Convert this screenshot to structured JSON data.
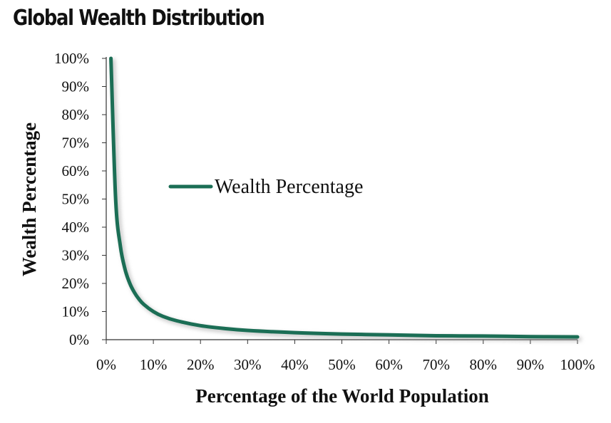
{
  "chart_data": {
    "type": "line",
    "title": "Global Wealth Distribution",
    "xlabel": "Percentage of the World Population",
    "ylabel": "Wealth Percentage",
    "xlim": [
      0,
      100
    ],
    "ylim": [
      0,
      100
    ],
    "x_ticks": [
      "0%",
      "10%",
      "20%",
      "30%",
      "40%",
      "50%",
      "60%",
      "70%",
      "80%",
      "90%",
      "100%"
    ],
    "y_ticks": [
      "0%",
      "10%",
      "20%",
      "30%",
      "40%",
      "50%",
      "60%",
      "70%",
      "80%",
      "90%",
      "100%"
    ],
    "grid": false,
    "legend_placement": "center-left",
    "series": [
      {
        "name": "Wealth Percentage",
        "color": "#1b6e55",
        "x": [
          1,
          2,
          3,
          4,
          5,
          6,
          7,
          8,
          10,
          12,
          15,
          20,
          25,
          30,
          40,
          50,
          60,
          70,
          80,
          90,
          100
        ],
        "y": [
          100,
          50,
          33.3,
          25,
          20,
          16.7,
          14.3,
          12.5,
          10,
          8.3,
          6.7,
          5,
          4,
          3.3,
          2.5,
          2,
          1.7,
          1.4,
          1.3,
          1.1,
          1
        ]
      }
    ]
  }
}
